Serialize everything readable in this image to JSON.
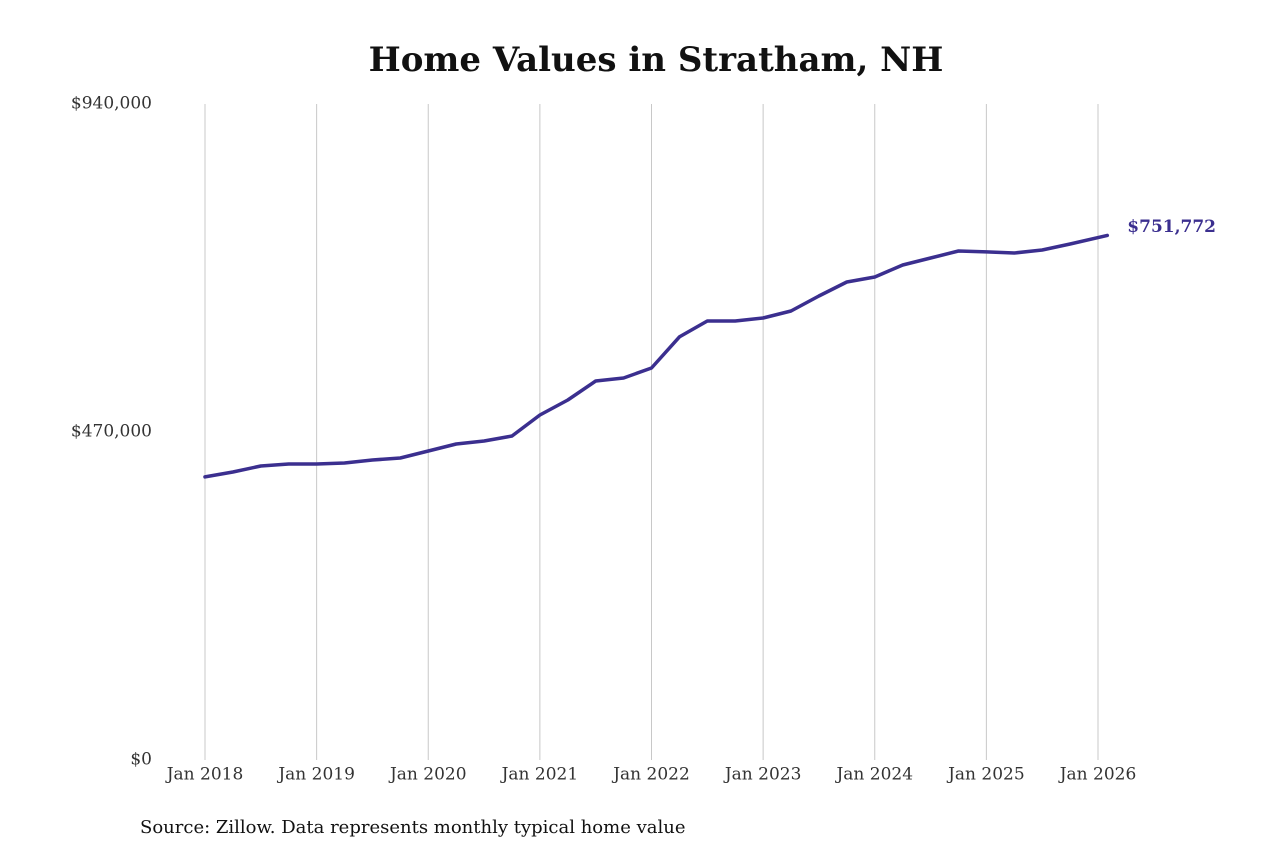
{
  "chart_data": {
    "type": "line",
    "title": "Home Values in Stratham, NH",
    "source": "Source: Zillow. Data represents monthly typical home value",
    "color": "#3b2f8f",
    "grid": "x",
    "x": [
      "2018-01",
      "2018-04",
      "2018-07",
      "2018-10",
      "2019-01",
      "2019-04",
      "2019-07",
      "2019-10",
      "2020-01",
      "2020-04",
      "2020-07",
      "2020-10",
      "2021-01",
      "2021-04",
      "2021-07",
      "2021-10",
      "2022-01",
      "2022-04",
      "2022-07",
      "2022-10",
      "2023-01",
      "2023-04",
      "2023-07",
      "2023-10",
      "2024-01",
      "2024-04",
      "2024-07",
      "2024-10",
      "2025-01",
      "2025-04",
      "2025-07",
      "2025-10",
      "2026-02"
    ],
    "values": [
      405600,
      412700,
      421300,
      424200,
      424200,
      425600,
      429900,
      432800,
      442800,
      452800,
      457100,
      464300,
      494400,
      515900,
      543100,
      547400,
      561700,
      606200,
      629100,
      629100,
      633400,
      643400,
      664900,
      685000,
      692100,
      709300,
      719400,
      729400,
      728000,
      726500,
      730800,
      739400,
      751772
    ],
    "value_labels": [
      null,
      null,
      null,
      null,
      null,
      null,
      null,
      null,
      null,
      null,
      null,
      null,
      null,
      null,
      null,
      null,
      null,
      null,
      null,
      null,
      null,
      null,
      null,
      null,
      null,
      null,
      null,
      null,
      null,
      null,
      null,
      null,
      "$751,772"
    ],
    "xlim": [
      "2018-01",
      "2026-01"
    ],
    "xticks": [
      {
        "value": "2018-01",
        "label": "Jan 2018"
      },
      {
        "value": "2019-01",
        "label": "Jan 2019"
      },
      {
        "value": "2020-01",
        "label": "Jan 2020"
      },
      {
        "value": "2021-01",
        "label": "Jan 2021"
      },
      {
        "value": "2022-01",
        "label": "Jan 2022"
      },
      {
        "value": "2023-01",
        "label": "Jan 2023"
      },
      {
        "value": "2024-01",
        "label": "Jan 2024"
      },
      {
        "value": "2025-01",
        "label": "Jan 2025"
      },
      {
        "value": "2026-01",
        "label": "Jan 2026"
      }
    ],
    "ylim": [
      0,
      940000
    ],
    "yticks": [
      {
        "value": 0,
        "label": "$0"
      },
      {
        "value": 470000,
        "label": "$470,000"
      },
      {
        "value": 940000,
        "label": "$940,000"
      }
    ]
  }
}
